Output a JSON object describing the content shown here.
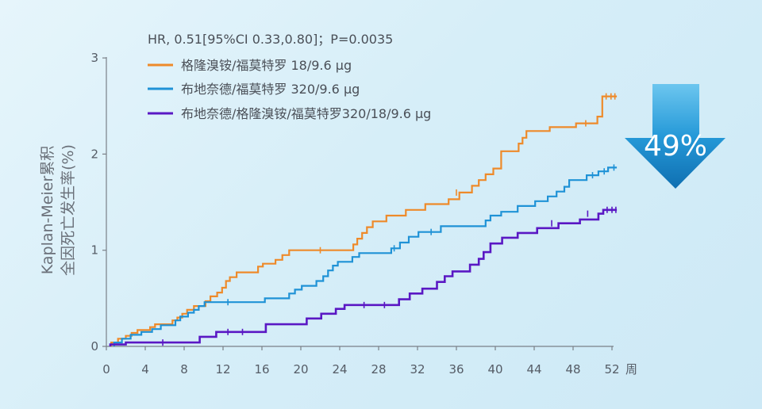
{
  "chart_data": {
    "type": "line",
    "subtype": "kaplan-meier step",
    "annotation": "HR, 0.51[95%CI 0.33,0.80]；P=0.0035",
    "ylabel_line1": "Kaplan-Meier累积",
    "ylabel_line2": "全因死亡发生率(%)",
    "xunit": "周",
    "xlim": [
      0,
      52
    ],
    "ylim": [
      0,
      3
    ],
    "xticks": [
      0,
      4,
      8,
      12,
      16,
      20,
      24,
      28,
      32,
      36,
      40,
      44,
      48,
      52
    ],
    "yticks": [
      0,
      1,
      2,
      3
    ],
    "grid": false,
    "legend_position": "top-left",
    "reduction_badge": {
      "text": "49%",
      "color": "#1a8fd0"
    },
    "series": [
      {
        "name": "格隆溴铵/福莫特罗 18/9.6 μg",
        "color": "#ee8a2a",
        "points": [
          [
            0.5,
            0
          ],
          [
            0.5,
            0.04
          ],
          [
            1.2,
            0.04
          ],
          [
            1.2,
            0.08
          ],
          [
            2.0,
            0.08
          ],
          [
            2.0,
            0.11
          ],
          [
            2.6,
            0.11
          ],
          [
            2.6,
            0.14
          ],
          [
            3.2,
            0.14
          ],
          [
            3.2,
            0.17
          ],
          [
            4.5,
            0.17
          ],
          [
            4.5,
            0.2
          ],
          [
            5.0,
            0.2
          ],
          [
            5.0,
            0.23
          ],
          [
            6.8,
            0.23
          ],
          [
            6.8,
            0.27
          ],
          [
            7.3,
            0.27
          ],
          [
            7.3,
            0.3
          ],
          [
            7.8,
            0.3
          ],
          [
            7.8,
            0.34
          ],
          [
            8.3,
            0.34
          ],
          [
            8.3,
            0.38
          ],
          [
            9.0,
            0.38
          ],
          [
            9.0,
            0.42
          ],
          [
            10.2,
            0.42
          ],
          [
            10.2,
            0.47
          ],
          [
            10.7,
            0.47
          ],
          [
            10.7,
            0.52
          ],
          [
            11.4,
            0.52
          ],
          [
            11.4,
            0.56
          ],
          [
            11.9,
            0.56
          ],
          [
            11.9,
            0.61
          ],
          [
            12.3,
            0.61
          ],
          [
            12.3,
            0.68
          ],
          [
            12.7,
            0.68
          ],
          [
            12.7,
            0.72
          ],
          [
            13.4,
            0.72
          ],
          [
            13.4,
            0.77
          ],
          [
            15.6,
            0.77
          ],
          [
            15.6,
            0.83
          ],
          [
            16.1,
            0.83
          ],
          [
            16.1,
            0.86
          ],
          [
            17.4,
            0.86
          ],
          [
            17.4,
            0.9
          ],
          [
            18.1,
            0.9
          ],
          [
            18.1,
            0.95
          ],
          [
            18.8,
            0.95
          ],
          [
            18.8,
            1.0
          ],
          [
            25.4,
            1.0
          ],
          [
            25.4,
            1.06
          ],
          [
            25.8,
            1.06
          ],
          [
            25.8,
            1.12
          ],
          [
            26.3,
            1.12
          ],
          [
            26.3,
            1.18
          ],
          [
            26.8,
            1.18
          ],
          [
            26.8,
            1.24
          ],
          [
            27.4,
            1.24
          ],
          [
            27.4,
            1.3
          ],
          [
            28.8,
            1.3
          ],
          [
            28.8,
            1.36
          ],
          [
            30.8,
            1.36
          ],
          [
            30.8,
            1.42
          ],
          [
            32.8,
            1.42
          ],
          [
            32.8,
            1.48
          ],
          [
            35.2,
            1.48
          ],
          [
            35.2,
            1.53
          ],
          [
            36.3,
            1.53
          ],
          [
            36.3,
            1.6
          ],
          [
            37.6,
            1.6
          ],
          [
            37.6,
            1.67
          ],
          [
            38.3,
            1.67
          ],
          [
            38.3,
            1.73
          ],
          [
            39.0,
            1.73
          ],
          [
            39.0,
            1.79
          ],
          [
            39.8,
            1.79
          ],
          [
            39.8,
            1.85
          ],
          [
            40.6,
            1.85
          ],
          [
            40.6,
            2.03
          ],
          [
            42.4,
            2.03
          ],
          [
            42.4,
            2.11
          ],
          [
            42.8,
            2.11
          ],
          [
            42.8,
            2.17
          ],
          [
            43.2,
            2.17
          ],
          [
            43.2,
            2.24
          ],
          [
            45.6,
            2.24
          ],
          [
            45.6,
            2.28
          ],
          [
            48.3,
            2.28
          ],
          [
            48.3,
            2.32
          ],
          [
            50.5,
            2.32
          ],
          [
            50.5,
            2.39
          ],
          [
            51.0,
            2.39
          ],
          [
            51.0,
            2.6
          ],
          [
            52.5,
            2.6
          ]
        ],
        "censored": [
          [
            22.0,
            1.0
          ],
          [
            36.0,
            1.6
          ],
          [
            49.3,
            2.32
          ],
          [
            51.4,
            2.6
          ],
          [
            51.9,
            2.6
          ],
          [
            52.3,
            2.6
          ]
        ]
      },
      {
        "name": "布地奈德/福莫特罗 320/9.6 μg",
        "color": "#1f92d6",
        "points": [
          [
            0.8,
            0
          ],
          [
            0.8,
            0.04
          ],
          [
            1.6,
            0.04
          ],
          [
            1.6,
            0.08
          ],
          [
            2.5,
            0.08
          ],
          [
            2.5,
            0.12
          ],
          [
            3.6,
            0.12
          ],
          [
            3.6,
            0.15
          ],
          [
            4.7,
            0.15
          ],
          [
            4.7,
            0.18
          ],
          [
            5.6,
            0.18
          ],
          [
            5.6,
            0.22
          ],
          [
            7.1,
            0.22
          ],
          [
            7.1,
            0.27
          ],
          [
            7.6,
            0.27
          ],
          [
            7.6,
            0.31
          ],
          [
            8.4,
            0.31
          ],
          [
            8.4,
            0.35
          ],
          [
            9.0,
            0.35
          ],
          [
            9.0,
            0.38
          ],
          [
            9.5,
            0.38
          ],
          [
            9.5,
            0.42
          ],
          [
            10.1,
            0.42
          ],
          [
            10.1,
            0.46
          ],
          [
            16.3,
            0.46
          ],
          [
            16.3,
            0.5
          ],
          [
            18.8,
            0.5
          ],
          [
            18.8,
            0.55
          ],
          [
            19.4,
            0.55
          ],
          [
            19.4,
            0.59
          ],
          [
            20.1,
            0.59
          ],
          [
            20.1,
            0.63
          ],
          [
            21.6,
            0.63
          ],
          [
            21.6,
            0.68
          ],
          [
            22.3,
            0.68
          ],
          [
            22.3,
            0.73
          ],
          [
            22.8,
            0.73
          ],
          [
            22.8,
            0.79
          ],
          [
            23.3,
            0.79
          ],
          [
            23.3,
            0.84
          ],
          [
            23.8,
            0.84
          ],
          [
            23.8,
            0.88
          ],
          [
            25.3,
            0.88
          ],
          [
            25.3,
            0.93
          ],
          [
            26.0,
            0.93
          ],
          [
            26.0,
            0.97
          ],
          [
            29.3,
            0.97
          ],
          [
            29.3,
            1.02
          ],
          [
            30.2,
            1.02
          ],
          [
            30.2,
            1.08
          ],
          [
            31.1,
            1.08
          ],
          [
            31.1,
            1.14
          ],
          [
            32.1,
            1.14
          ],
          [
            32.1,
            1.19
          ],
          [
            34.4,
            1.19
          ],
          [
            34.4,
            1.25
          ],
          [
            39.0,
            1.25
          ],
          [
            39.0,
            1.31
          ],
          [
            39.5,
            1.31
          ],
          [
            39.5,
            1.36
          ],
          [
            40.6,
            1.36
          ],
          [
            40.6,
            1.4
          ],
          [
            42.3,
            1.4
          ],
          [
            42.3,
            1.46
          ],
          [
            44.1,
            1.46
          ],
          [
            44.1,
            1.51
          ],
          [
            45.4,
            1.51
          ],
          [
            45.4,
            1.56
          ],
          [
            46.3,
            1.56
          ],
          [
            46.3,
            1.61
          ],
          [
            47.1,
            1.61
          ],
          [
            47.1,
            1.66
          ],
          [
            47.6,
            1.66
          ],
          [
            47.6,
            1.73
          ],
          [
            49.4,
            1.73
          ],
          [
            49.4,
            1.78
          ],
          [
            50.6,
            1.78
          ],
          [
            50.6,
            1.82
          ],
          [
            51.6,
            1.82
          ],
          [
            51.6,
            1.86
          ],
          [
            52.5,
            1.86
          ]
        ],
        "censored": [
          [
            12.5,
            0.46
          ],
          [
            29.6,
            1.02
          ],
          [
            33.4,
            1.19
          ],
          [
            50.0,
            1.78
          ],
          [
            51.2,
            1.82
          ],
          [
            52.2,
            1.86
          ]
        ]
      },
      {
        "name": "布地奈德/格隆溴铵/福莫特罗320/18/9.6 μg",
        "color": "#5a18c4",
        "points": [
          [
            0.4,
            0
          ],
          [
            0.4,
            0.02
          ],
          [
            2.0,
            0.02
          ],
          [
            2.0,
            0.04
          ],
          [
            9.6,
            0.04
          ],
          [
            9.6,
            0.1
          ],
          [
            11.3,
            0.1
          ],
          [
            11.3,
            0.15
          ],
          [
            16.4,
            0.15
          ],
          [
            16.4,
            0.23
          ],
          [
            20.6,
            0.23
          ],
          [
            20.6,
            0.29
          ],
          [
            22.1,
            0.29
          ],
          [
            22.1,
            0.34
          ],
          [
            23.6,
            0.34
          ],
          [
            23.6,
            0.39
          ],
          [
            24.5,
            0.39
          ],
          [
            24.5,
            0.43
          ],
          [
            30.1,
            0.43
          ],
          [
            30.1,
            0.49
          ],
          [
            31.2,
            0.49
          ],
          [
            31.2,
            0.55
          ],
          [
            32.5,
            0.55
          ],
          [
            32.5,
            0.6
          ],
          [
            34.0,
            0.6
          ],
          [
            34.0,
            0.67
          ],
          [
            34.8,
            0.67
          ],
          [
            34.8,
            0.73
          ],
          [
            35.6,
            0.73
          ],
          [
            35.6,
            0.78
          ],
          [
            37.4,
            0.78
          ],
          [
            37.4,
            0.85
          ],
          [
            38.3,
            0.85
          ],
          [
            38.3,
            0.91
          ],
          [
            38.8,
            0.91
          ],
          [
            38.8,
            0.98
          ],
          [
            39.5,
            0.98
          ],
          [
            39.5,
            1.07
          ],
          [
            40.7,
            1.07
          ],
          [
            40.7,
            1.13
          ],
          [
            42.3,
            1.13
          ],
          [
            42.3,
            1.18
          ],
          [
            44.3,
            1.18
          ],
          [
            44.3,
            1.23
          ],
          [
            46.5,
            1.23
          ],
          [
            46.5,
            1.28
          ],
          [
            48.7,
            1.28
          ],
          [
            48.7,
            1.32
          ],
          [
            50.6,
            1.32
          ],
          [
            50.6,
            1.38
          ],
          [
            51.1,
            1.38
          ],
          [
            51.1,
            1.42
          ],
          [
            52.5,
            1.42
          ]
        ],
        "censored": [
          [
            5.8,
            0.04
          ],
          [
            12.5,
            0.15
          ],
          [
            14.0,
            0.15
          ],
          [
            26.5,
            0.43
          ],
          [
            28.6,
            0.43
          ],
          [
            45.8,
            1.28
          ],
          [
            49.5,
            1.38
          ],
          [
            51.5,
            1.42
          ],
          [
            52.0,
            1.42
          ],
          [
            52.4,
            1.42
          ]
        ]
      }
    ]
  }
}
